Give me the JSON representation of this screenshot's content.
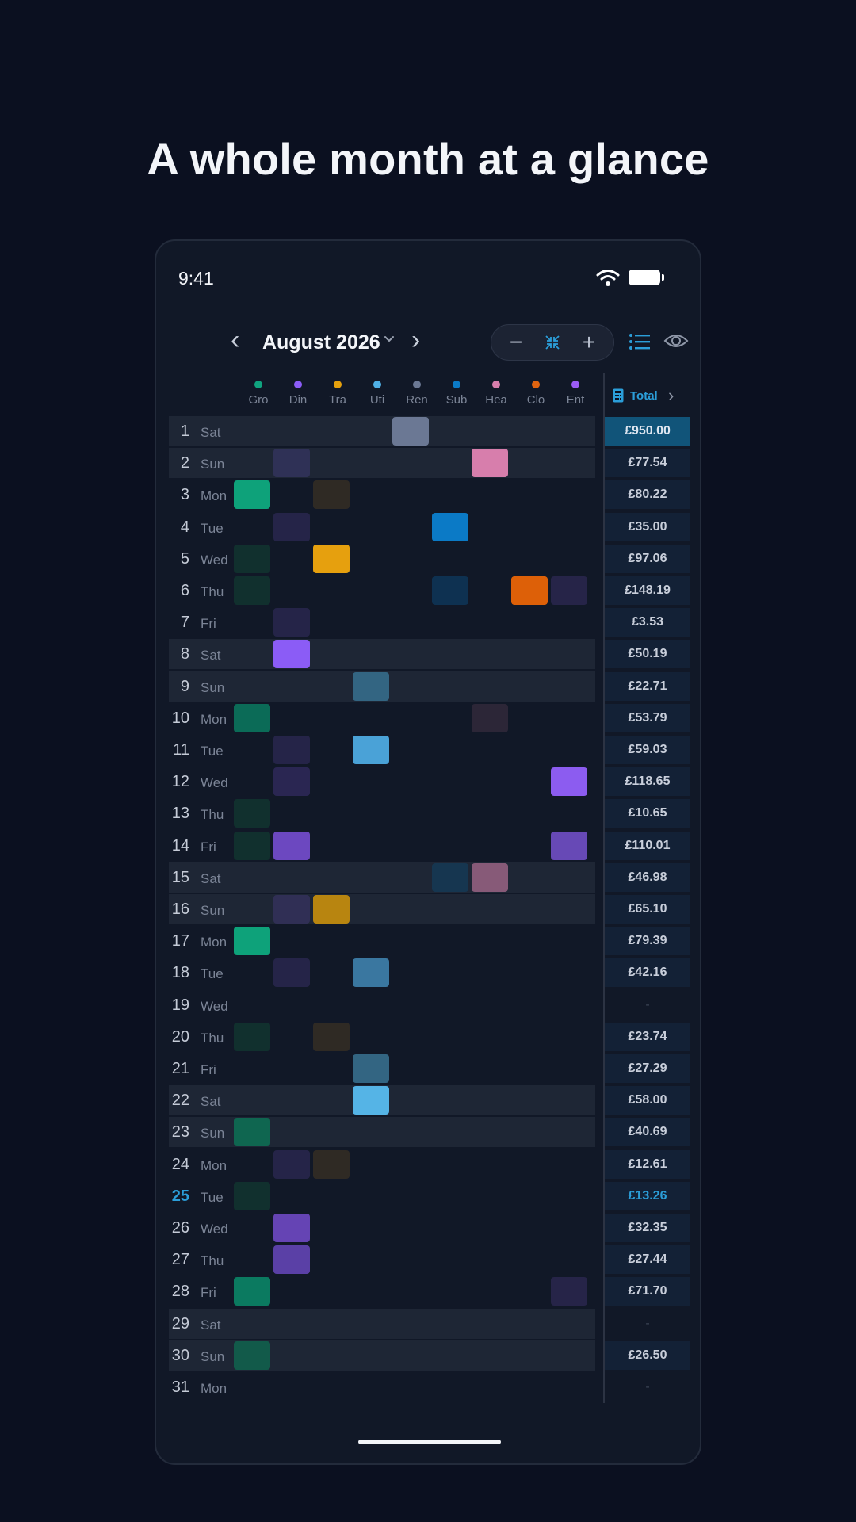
{
  "headline": "A whole month at a glance",
  "status": {
    "time": "9:41"
  },
  "header": {
    "month": "August 2026",
    "prev_icon": "chevron-left-icon",
    "next_icon": "chevron-right-icon"
  },
  "zoom": {
    "minus": "−",
    "fit": "⤧",
    "plus": "+"
  },
  "categories": [
    {
      "label": "Gro",
      "color": "#10a37f"
    },
    {
      "label": "Din",
      "color": "#8b5cf6"
    },
    {
      "label": "Tra",
      "color": "#e5a00d"
    },
    {
      "label": "Uti",
      "color": "#4fb0e6"
    },
    {
      "label": "Ren",
      "color": "#6b7894"
    },
    {
      "label": "Sub",
      "color": "#0b7ac6"
    },
    {
      "label": "Hea",
      "color": "#d77eac"
    },
    {
      "label": "Clo",
      "color": "#e06410"
    },
    {
      "label": "Ent",
      "color": "#9b5cf6"
    }
  ],
  "total_header": "Total",
  "days": [
    {
      "num": "1",
      "wd": "Sat",
      "weekend": true,
      "total": "£950.00",
      "highlight": true,
      "cells": [
        {
          "c": 4,
          "col": "#6b7894"
        }
      ]
    },
    {
      "num": "2",
      "wd": "Sun",
      "weekend": true,
      "total": "£77.54",
      "cells": [
        {
          "c": 1,
          "col": "#2f3156"
        },
        {
          "c": 6,
          "col": "#d77eac"
        }
      ]
    },
    {
      "num": "3",
      "wd": "Mon",
      "total": "£80.22",
      "cells": [
        {
          "c": 0,
          "col": "#0ea27a"
        },
        {
          "c": 2,
          "col": "#2f2a24"
        }
      ]
    },
    {
      "num": "4",
      "wd": "Tue",
      "total": "£35.00",
      "cells": [
        {
          "c": 1,
          "col": "#252448"
        },
        {
          "c": 5,
          "col": "#0b7ac6"
        }
      ]
    },
    {
      "num": "5",
      "wd": "Wed",
      "total": "£97.06",
      "cells": [
        {
          "c": 0,
          "col": "#11302e"
        },
        {
          "c": 2,
          "col": "#e6a00e"
        }
      ]
    },
    {
      "num": "6",
      "wd": "Thu",
      "total": "£148.19",
      "cells": [
        {
          "c": 0,
          "col": "#11302e"
        },
        {
          "c": 5,
          "col": "#0e3151"
        },
        {
          "c": 7,
          "col": "#dd6008"
        },
        {
          "c": 8,
          "col": "#262448"
        }
      ]
    },
    {
      "num": "7",
      "wd": "Fri",
      "total": "£3.53",
      "cells": [
        {
          "c": 1,
          "col": "#252448"
        }
      ]
    },
    {
      "num": "8",
      "wd": "Sat",
      "weekend": true,
      "total": "£50.19",
      "cells": [
        {
          "c": 1,
          "col": "#8b5cf6"
        }
      ]
    },
    {
      "num": "9",
      "wd": "Sun",
      "weekend": true,
      "total": "£22.71",
      "cells": [
        {
          "c": 3,
          "col": "#336582"
        }
      ]
    },
    {
      "num": "10",
      "wd": "Mon",
      "total": "£53.79",
      "cells": [
        {
          "c": 0,
          "col": "#0b6b57"
        },
        {
          "c": 6,
          "col": "#2c2637"
        }
      ]
    },
    {
      "num": "11",
      "wd": "Tue",
      "total": "£59.03",
      "cells": [
        {
          "c": 1,
          "col": "#252448"
        },
        {
          "c": 3,
          "col": "#4aa2d7"
        }
      ]
    },
    {
      "num": "12",
      "wd": "Wed",
      "total": "£118.65",
      "cells": [
        {
          "c": 1,
          "col": "#2a2652"
        },
        {
          "c": 8,
          "col": "#8c5cf0"
        }
      ]
    },
    {
      "num": "13",
      "wd": "Thu",
      "total": "£10.65",
      "cells": [
        {
          "c": 0,
          "col": "#11302e"
        }
      ]
    },
    {
      "num": "14",
      "wd": "Fri",
      "total": "£110.01",
      "cells": [
        {
          "c": 0,
          "col": "#11302e"
        },
        {
          "c": 1,
          "col": "#6c48c0"
        },
        {
          "c": 8,
          "col": "#6749b6"
        }
      ]
    },
    {
      "num": "15",
      "wd": "Sat",
      "weekend": true,
      "total": "£46.98",
      "cells": [
        {
          "c": 5,
          "col": "#163650"
        },
        {
          "c": 6,
          "col": "#875a78"
        }
      ]
    },
    {
      "num": "16",
      "wd": "Sun",
      "weekend": true,
      "total": "£65.10",
      "cells": [
        {
          "c": 1,
          "col": "#302f55"
        },
        {
          "c": 2,
          "col": "#b88510"
        }
      ]
    },
    {
      "num": "17",
      "wd": "Mon",
      "total": "£79.39",
      "cells": [
        {
          "c": 0,
          "col": "#0ea27a"
        }
      ]
    },
    {
      "num": "18",
      "wd": "Tue",
      "total": "£42.16",
      "cells": [
        {
          "c": 1,
          "col": "#252448"
        },
        {
          "c": 3,
          "col": "#3a77a0"
        }
      ]
    },
    {
      "num": "19",
      "wd": "Wed",
      "total": "-",
      "empty": true,
      "cells": []
    },
    {
      "num": "20",
      "wd": "Thu",
      "total": "£23.74",
      "cells": [
        {
          "c": 0,
          "col": "#11302e"
        },
        {
          "c": 2,
          "col": "#2f2a24"
        }
      ]
    },
    {
      "num": "21",
      "wd": "Fri",
      "total": "£27.29",
      "cells": [
        {
          "c": 3,
          "col": "#336582"
        }
      ]
    },
    {
      "num": "22",
      "wd": "Sat",
      "weekend": true,
      "total": "£58.00",
      "cells": [
        {
          "c": 3,
          "col": "#55b4e6"
        }
      ]
    },
    {
      "num": "23",
      "wd": "Sun",
      "weekend": true,
      "total": "£40.69",
      "cells": [
        {
          "c": 0,
          "col": "#0f6650"
        }
      ]
    },
    {
      "num": "24",
      "wd": "Mon",
      "total": "£12.61",
      "cells": [
        {
          "c": 1,
          "col": "#252448"
        },
        {
          "c": 2,
          "col": "#2f2a24"
        }
      ]
    },
    {
      "num": "25",
      "wd": "Tue",
      "today": true,
      "total": "£13.26",
      "cells": [
        {
          "c": 0,
          "col": "#11302e"
        }
      ]
    },
    {
      "num": "26",
      "wd": "Wed",
      "total": "£32.35",
      "cells": [
        {
          "c": 1,
          "col": "#6544b4"
        }
      ]
    },
    {
      "num": "27",
      "wd": "Thu",
      "total": "£27.44",
      "cells": [
        {
          "c": 1,
          "col": "#5a40a6"
        }
      ]
    },
    {
      "num": "28",
      "wd": "Fri",
      "total": "£71.70",
      "cells": [
        {
          "c": 0,
          "col": "#0b7a60"
        },
        {
          "c": 8,
          "col": "#262448"
        }
      ]
    },
    {
      "num": "29",
      "wd": "Sat",
      "weekend": true,
      "total": "-",
      "empty": true,
      "cells": []
    },
    {
      "num": "30",
      "wd": "Sun",
      "weekend": true,
      "total": "£26.50",
      "cells": [
        {
          "c": 0,
          "col": "#125a4a"
        }
      ]
    },
    {
      "num": "31",
      "wd": "Mon",
      "total": "-",
      "empty": true,
      "cells": []
    }
  ]
}
